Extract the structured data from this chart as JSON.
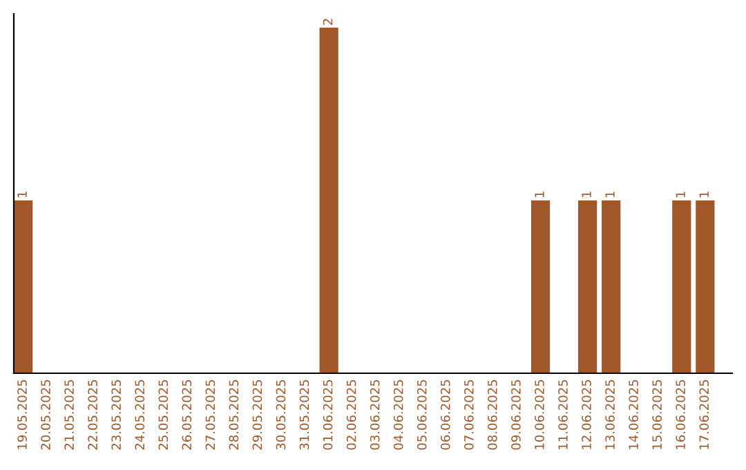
{
  "chart_data": {
    "type": "bar",
    "categories": [
      "19.05.2025",
      "20.05.2025",
      "21.05.2025",
      "22.05.2025",
      "23.05.2025",
      "24.05.2025",
      "25.05.2025",
      "26.05.2025",
      "27.05.2025",
      "28.05.2025",
      "29.05.2025",
      "30.05.2025",
      "31.05.2025",
      "01.06.2025",
      "02.06.2025",
      "03.06.2025",
      "04.06.2025",
      "05.06.2025",
      "06.06.2025",
      "07.06.2025",
      "08.06.2025",
      "09.06.2025",
      "10.06.2025",
      "11.06.2025",
      "12.06.2025",
      "13.06.2025",
      "14.06.2025",
      "15.06.2025",
      "16.06.2025",
      "17.06.2025"
    ],
    "values": [
      1,
      0,
      0,
      0,
      0,
      0,
      0,
      0,
      0,
      0,
      0,
      0,
      0,
      2,
      0,
      0,
      0,
      0,
      0,
      0,
      0,
      0,
      1,
      0,
      1,
      1,
      0,
      0,
      1,
      1
    ],
    "value_labels": [
      "1",
      null,
      null,
      null,
      null,
      null,
      null,
      null,
      null,
      null,
      null,
      null,
      null,
      "2",
      null,
      null,
      null,
      null,
      null,
      null,
      null,
      null,
      "1",
      null,
      "1",
      "1",
      null,
      null,
      "1",
      "1"
    ],
    "color": "#a0582a",
    "tick_labels": "x",
    "grid": false,
    "legend": false
  }
}
